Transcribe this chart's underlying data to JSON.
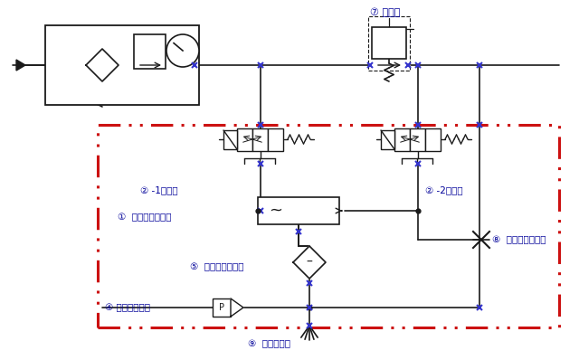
{
  "bg_color": "#ffffff",
  "line_color": "#1a1a1a",
  "blue_dot_color": "#3333cc",
  "red_dash_color": "#cc1111",
  "label_color": "#000099",
  "fig_width": 6.4,
  "fig_height": 3.98,
  "dpi": 100,
  "labels": {
    "reduce_valve": "⑦ 減圧弁",
    "supply_valve": "② -1供給弁",
    "break_valve": "② -2破壊弁",
    "ejector": "①  真空エジェクタ",
    "filter": "⑤  真空用フィルタ",
    "pressure_sw": "④ 圧力スイッチ",
    "flow_valve": "⑧  流量調整バルブ",
    "vacuum_pad": "⑨  真空パッド"
  }
}
